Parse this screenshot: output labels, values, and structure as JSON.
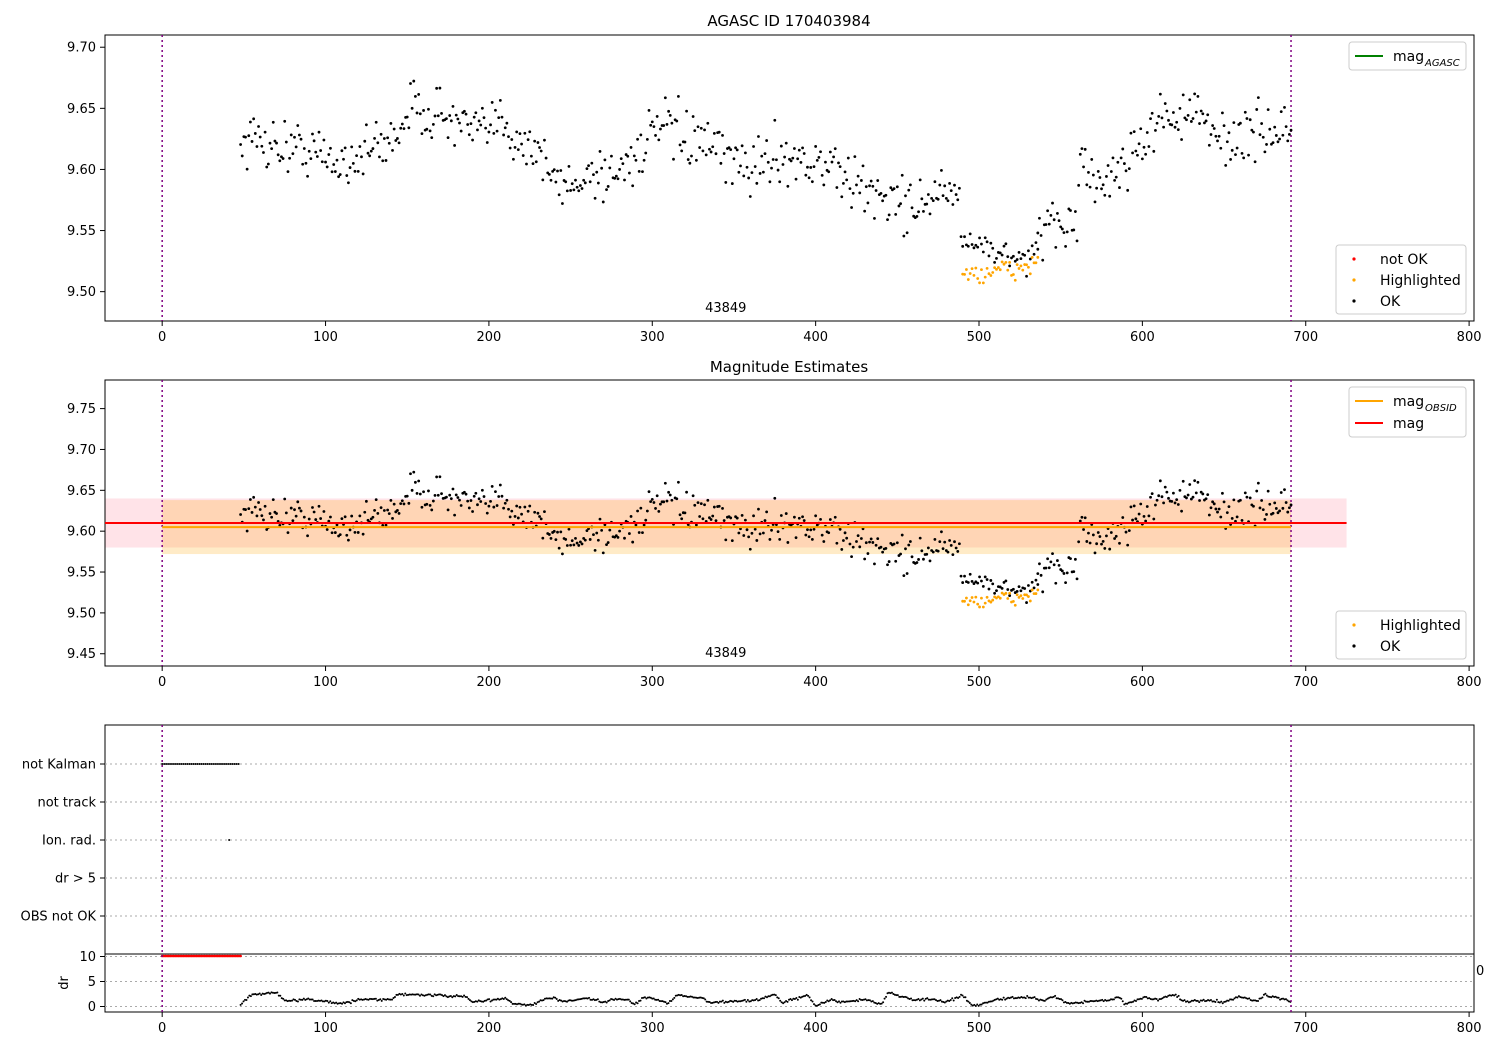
{
  "chart_data": [
    {
      "type": "scatter",
      "title": "AGASC ID 170403984",
      "xlim": [
        -35,
        803
      ],
      "ylim": [
        9.476,
        9.71
      ],
      "xticks": [
        0,
        100,
        200,
        300,
        400,
        500,
        600,
        700,
        800
      ],
      "yticks": [
        9.5,
        9.55,
        9.6,
        9.65,
        9.7
      ],
      "ytick_labels": [
        "9.50",
        "9.55",
        "9.60",
        "9.65",
        "9.70"
      ],
      "vlines": [
        0,
        691
      ],
      "obsid_label": {
        "text": "43849",
        "x": 345
      },
      "legend_lines": [
        {
          "label_base": "mag",
          "label_sub": "AGASC",
          "color": "#008000"
        }
      ],
      "legend_points": [
        {
          "label": "not OK",
          "color": "#ff0000"
        },
        {
          "label": "Highlighted",
          "color": "#ffa500"
        },
        {
          "label": "OK",
          "color": "#000000"
        }
      ],
      "series": [
        {
          "name": "OK",
          "color": "#000000",
          "trend": [
            [
              48,
              9.622
            ],
            [
              60,
              9.625
            ],
            [
              75,
              9.618
            ],
            [
              90,
              9.617
            ],
            [
              105,
              9.605
            ],
            [
              120,
              9.612
            ],
            [
              140,
              9.623
            ],
            [
              150,
              9.648
            ],
            [
              165,
              9.648
            ],
            [
              180,
              9.638
            ],
            [
              195,
              9.628
            ],
            [
              210,
              9.642
            ],
            [
              215,
              9.628
            ],
            [
              230,
              9.616
            ],
            [
              240,
              9.59
            ],
            [
              250,
              9.585
            ],
            [
              260,
              9.598
            ],
            [
              275,
              9.595
            ],
            [
              290,
              9.612
            ],
            [
              305,
              9.635
            ],
            [
              320,
              9.626
            ],
            [
              335,
              9.618
            ],
            [
              350,
              9.604
            ],
            [
              365,
              9.604
            ],
            [
              380,
              9.614
            ],
            [
              395,
              9.605
            ],
            [
              410,
              9.602
            ],
            [
              425,
              9.585
            ],
            [
              440,
              9.58
            ],
            [
              455,
              9.57
            ],
            [
              470,
              9.577
            ],
            [
              488,
              9.58
            ],
            [
              490,
              9.538
            ],
            [
              500,
              9.536
            ],
            [
              510,
              9.531
            ],
            [
              520,
              9.528
            ],
            [
              530,
              9.53
            ],
            [
              540,
              9.545
            ],
            [
              550,
              9.553
            ],
            [
              560,
              9.563
            ],
            [
              562,
              9.61
            ],
            [
              570,
              9.588
            ],
            [
              580,
              9.592
            ],
            [
              590,
              9.608
            ],
            [
              600,
              9.625
            ],
            [
              615,
              9.645
            ],
            [
              630,
              9.645
            ],
            [
              645,
              9.628
            ],
            [
              660,
              9.625
            ],
            [
              675,
              9.632
            ],
            [
              690,
              9.632
            ]
          ]
        },
        {
          "name": "Highlighted",
          "color": "#ffa500",
          "trend": [
            [
              490,
              9.517
            ],
            [
              500,
              9.515
            ],
            [
              510,
              9.52
            ],
            [
              520,
              9.517
            ],
            [
              530,
              9.52
            ],
            [
              535,
              9.521
            ]
          ]
        }
      ]
    },
    {
      "type": "scatter",
      "title": "Magnitude Estimates",
      "xlim": [
        -35,
        803
      ],
      "ylim": [
        9.435,
        9.785
      ],
      "xticks": [
        0,
        100,
        200,
        300,
        400,
        500,
        600,
        700,
        800
      ],
      "yticks": [
        9.45,
        9.5,
        9.55,
        9.6,
        9.65,
        9.7,
        9.75
      ],
      "ytick_labels": [
        "9.45",
        "9.50",
        "9.55",
        "9.60",
        "9.65",
        "9.70",
        "9.75"
      ],
      "vlines": [
        0,
        691
      ],
      "obsid_label": {
        "text": "43849",
        "x": 345
      },
      "mag_band": {
        "x": [
          -35,
          725
        ],
        "y": [
          9.58,
          9.64
        ],
        "center": 9.61
      },
      "obsid_band": {
        "x": [
          0,
          691
        ],
        "y": [
          9.572,
          9.638
        ],
        "center": 9.605
      },
      "legend_lines": [
        {
          "label_base": "mag",
          "label_sub": "OBSID",
          "color": "#ffa500"
        },
        {
          "label_base": "mag",
          "label_sub": "",
          "color": "#ff0000"
        }
      ],
      "legend_points": [
        {
          "label": "Highlighted",
          "color": "#ffa500"
        },
        {
          "label": "OK",
          "color": "#000000"
        }
      ]
    },
    {
      "type": "scatter",
      "title": "",
      "xlim": [
        -35,
        803
      ],
      "xticks": [
        0,
        100,
        200,
        300,
        400,
        500,
        600,
        700,
        800
      ],
      "vlines": [
        0,
        691
      ],
      "flag_rows": [
        "not Kalman",
        "not track",
        "Ion. rad.",
        "dr > 5",
        "OBS not OK"
      ],
      "flags": [
        {
          "row": "not Kalman",
          "x_range": [
            0,
            48
          ]
        },
        {
          "row": "Ion. rad.",
          "x": [
            41
          ]
        }
      ],
      "dr": {
        "ylabel": "dr",
        "yticks": [
          0,
          5,
          10
        ],
        "ylim": [
          -0.5,
          10.5
        ],
        "clipped_at": 10,
        "clipped_x_range": [
          0,
          48
        ],
        "right_edge_label": "0",
        "segments": [
          [
            48,
            0.4
          ],
          [
            55,
            2.4
          ],
          [
            65,
            2.6
          ],
          [
            70,
            2.8
          ],
          [
            75,
            1.0
          ],
          [
            90,
            1.6
          ],
          [
            95,
            1.1
          ],
          [
            100,
            1.2
          ],
          [
            105,
            0.6
          ],
          [
            115,
            0.8
          ],
          [
            120,
            1.4
          ],
          [
            140,
            1.3
          ],
          [
            145,
            2.5
          ],
          [
            185,
            2.0
          ],
          [
            190,
            0.9
          ],
          [
            210,
            1.6
          ],
          [
            215,
            0.6
          ],
          [
            225,
            0.2
          ],
          [
            235,
            1.5
          ],
          [
            240,
            1.8
          ],
          [
            245,
            0.9
          ],
          [
            260,
            1.6
          ],
          [
            265,
            1.3
          ],
          [
            270,
            0.8
          ],
          [
            275,
            1.4
          ],
          [
            285,
            1.3
          ],
          [
            290,
            0.5
          ],
          [
            295,
            2.0
          ],
          [
            305,
            1.2
          ],
          [
            310,
            0.6
          ],
          [
            315,
            2.3
          ],
          [
            330,
            1.8
          ],
          [
            335,
            0.7
          ],
          [
            350,
            1.1
          ],
          [
            365,
            1.3
          ],
          [
            375,
            2.4
          ],
          [
            380,
            0.8
          ],
          [
            395,
            2.2
          ],
          [
            400,
            0.2
          ],
          [
            410,
            1.4
          ],
          [
            415,
            0.8
          ],
          [
            430,
            1.4
          ],
          [
            440,
            0.5
          ],
          [
            445,
            2.8
          ],
          [
            460,
            1.3
          ],
          [
            470,
            1.5
          ],
          [
            480,
            0.9
          ],
          [
            490,
            2.2
          ],
          [
            495,
            0.4
          ],
          [
            500,
            0.3
          ],
          [
            510,
            1.4
          ],
          [
            530,
            1.9
          ],
          [
            540,
            1.1
          ],
          [
            545,
            2.1
          ],
          [
            555,
            0.6
          ],
          [
            570,
            1.1
          ],
          [
            580,
            1.2
          ],
          [
            585,
            2.1
          ],
          [
            590,
            0.4
          ],
          [
            600,
            1.8
          ],
          [
            610,
            1.4
          ],
          [
            620,
            2.4
          ],
          [
            625,
            1.0
          ],
          [
            640,
            1.2
          ],
          [
            650,
            0.9
          ],
          [
            660,
            2.0
          ],
          [
            670,
            1.0
          ],
          [
            675,
            2.4
          ],
          [
            690,
            1.0
          ]
        ]
      }
    }
  ]
}
